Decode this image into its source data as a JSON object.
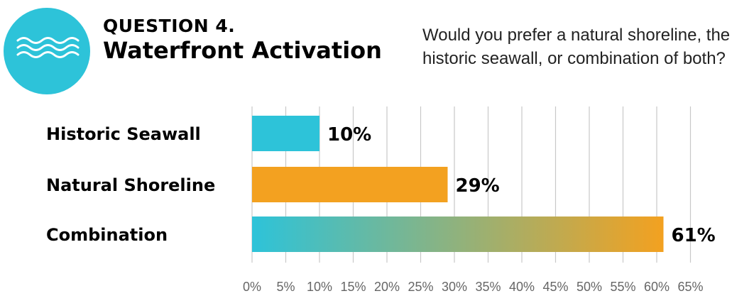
{
  "header": {
    "question_number": "QUESTION 4.",
    "question_title": "Waterfront Activation",
    "question_text": "Would you prefer a natural shoreline, the historic seawall, or combination of both?",
    "icon": "waves-icon"
  },
  "colors": {
    "icon_bg": "#2dc3d9",
    "teal": "#2dc3d9",
    "orange": "#f3a120",
    "gridline": "#c8c8c8"
  },
  "chart_data": {
    "type": "bar",
    "orientation": "horizontal",
    "categories": [
      "Historic Seawall",
      "Natural Shoreline",
      "Combination"
    ],
    "values": [
      10,
      29,
      61
    ],
    "value_labels": [
      "10%",
      "29%",
      "61%"
    ],
    "bar_fills": [
      "teal",
      "orange",
      "teal-to-orange gradient"
    ],
    "xlim": [
      0,
      65
    ],
    "xticks": [
      0,
      5,
      10,
      15,
      20,
      25,
      30,
      35,
      40,
      45,
      50,
      55,
      60,
      65
    ],
    "xtick_labels": [
      "0%",
      "5%",
      "10%",
      "15%",
      "20%",
      "25%",
      "30%",
      "35%",
      "40%",
      "45%",
      "50%",
      "55%",
      "60%",
      "65%"
    ],
    "grid": true,
    "legend": "none"
  }
}
